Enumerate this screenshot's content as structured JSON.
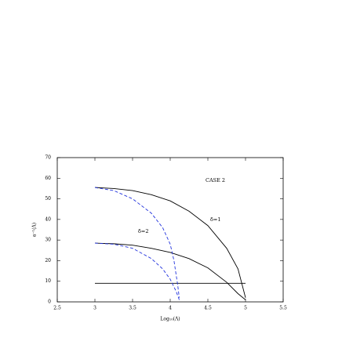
{
  "chart_data": {
    "type": "line",
    "x_label": "Log₁₀(Λ)",
    "y_label": "a⁻¹(Λ)",
    "annotations": [
      "CASE 2",
      "δ=1",
      "δ=2"
    ],
    "xlim": [
      2.5,
      5.5
    ],
    "xticks": [
      2.5,
      3,
      3.5,
      4,
      4.5,
      5,
      5.5
    ],
    "ylim": [
      0,
      70
    ],
    "yticks": [
      0,
      10,
      20,
      30,
      40,
      50,
      60,
      70
    ],
    "series": [
      {
        "color": "#000000",
        "dashed": false,
        "x": [
          3,
          3.25,
          3.5,
          3.75,
          4,
          4.25,
          4.5,
          4.75,
          4.9,
          5
        ],
        "values": [
          55.5,
          55,
          54,
          52,
          49,
          44,
          37,
          26,
          16,
          2
        ]
      },
      {
        "color": "#000000",
        "dashed": false,
        "x": [
          3,
          3.25,
          3.5,
          3.75,
          4,
          4.25,
          4.5,
          4.75,
          4.9,
          5
        ],
        "values": [
          28.5,
          28.2,
          27.5,
          26,
          24,
          21,
          16.5,
          9.5,
          4,
          1
        ]
      },
      {
        "color": "#000000",
        "dashed": false,
        "x": [
          3,
          5
        ],
        "values": [
          9,
          9
        ]
      },
      {
        "color": "#2233dd",
        "dashed": true,
        "x": [
          3,
          3.25,
          3.5,
          3.75,
          3.9,
          4,
          4.05,
          4.1,
          4.12
        ],
        "values": [
          55.5,
          54,
          50,
          43,
          36,
          28,
          20,
          8,
          2
        ]
      },
      {
        "color": "#2233dd",
        "dashed": true,
        "x": [
          3,
          3.25,
          3.5,
          3.75,
          3.9,
          4,
          4.08,
          4.12
        ],
        "values": [
          28.5,
          28,
          26,
          21,
          16,
          11,
          5,
          1
        ]
      }
    ]
  }
}
